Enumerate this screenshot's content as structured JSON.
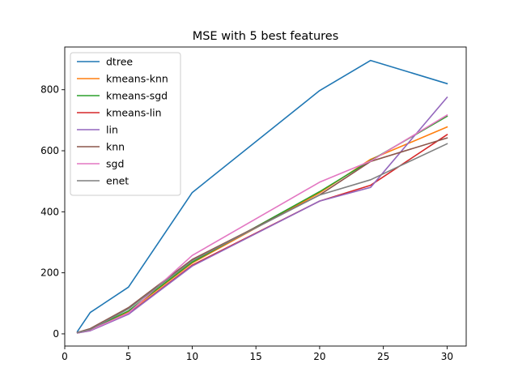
{
  "chart_data": {
    "type": "line",
    "title": "MSE with 5 best features",
    "xlabel": "",
    "ylabel": "",
    "xlim": [
      0,
      31.5
    ],
    "ylim": [
      -40,
      940
    ],
    "xticks": [
      0,
      5,
      10,
      15,
      20,
      25,
      30
    ],
    "yticks": [
      0,
      200,
      400,
      600,
      800
    ],
    "grid": false,
    "legend_position": "top-left",
    "x": [
      1,
      2,
      5,
      10,
      20,
      24,
      30
    ],
    "series": [
      {
        "name": "dtree",
        "color": "#1f77b4",
        "values": [
          8,
          70,
          153,
          463,
          797,
          896,
          820
        ]
      },
      {
        "name": "kmeans-knn",
        "color": "#ff7f0e",
        "values": [
          4,
          14,
          72,
          232,
          462,
          572,
          678
        ]
      },
      {
        "name": "kmeans-sgd",
        "color": "#2ca02c",
        "values": [
          4,
          14,
          75,
          235,
          466,
          568,
          713
        ]
      },
      {
        "name": "kmeans-lin",
        "color": "#d62728",
        "values": [
          3,
          11,
          66,
          225,
          435,
          487,
          653
        ]
      },
      {
        "name": "lin",
        "color": "#9467bd",
        "values": [
          3,
          10,
          64,
          222,
          435,
          480,
          775
        ]
      },
      {
        "name": "knn",
        "color": "#8c564b",
        "values": [
          5,
          17,
          86,
          244,
          455,
          565,
          642
        ]
      },
      {
        "name": "sgd",
        "color": "#e377c2",
        "values": [
          4,
          12,
          68,
          257,
          497,
          566,
          717
        ]
      },
      {
        "name": "enet",
        "color": "#7f7f7f",
        "values": [
          4,
          14,
          82,
          240,
          455,
          505,
          623
        ]
      }
    ]
  }
}
